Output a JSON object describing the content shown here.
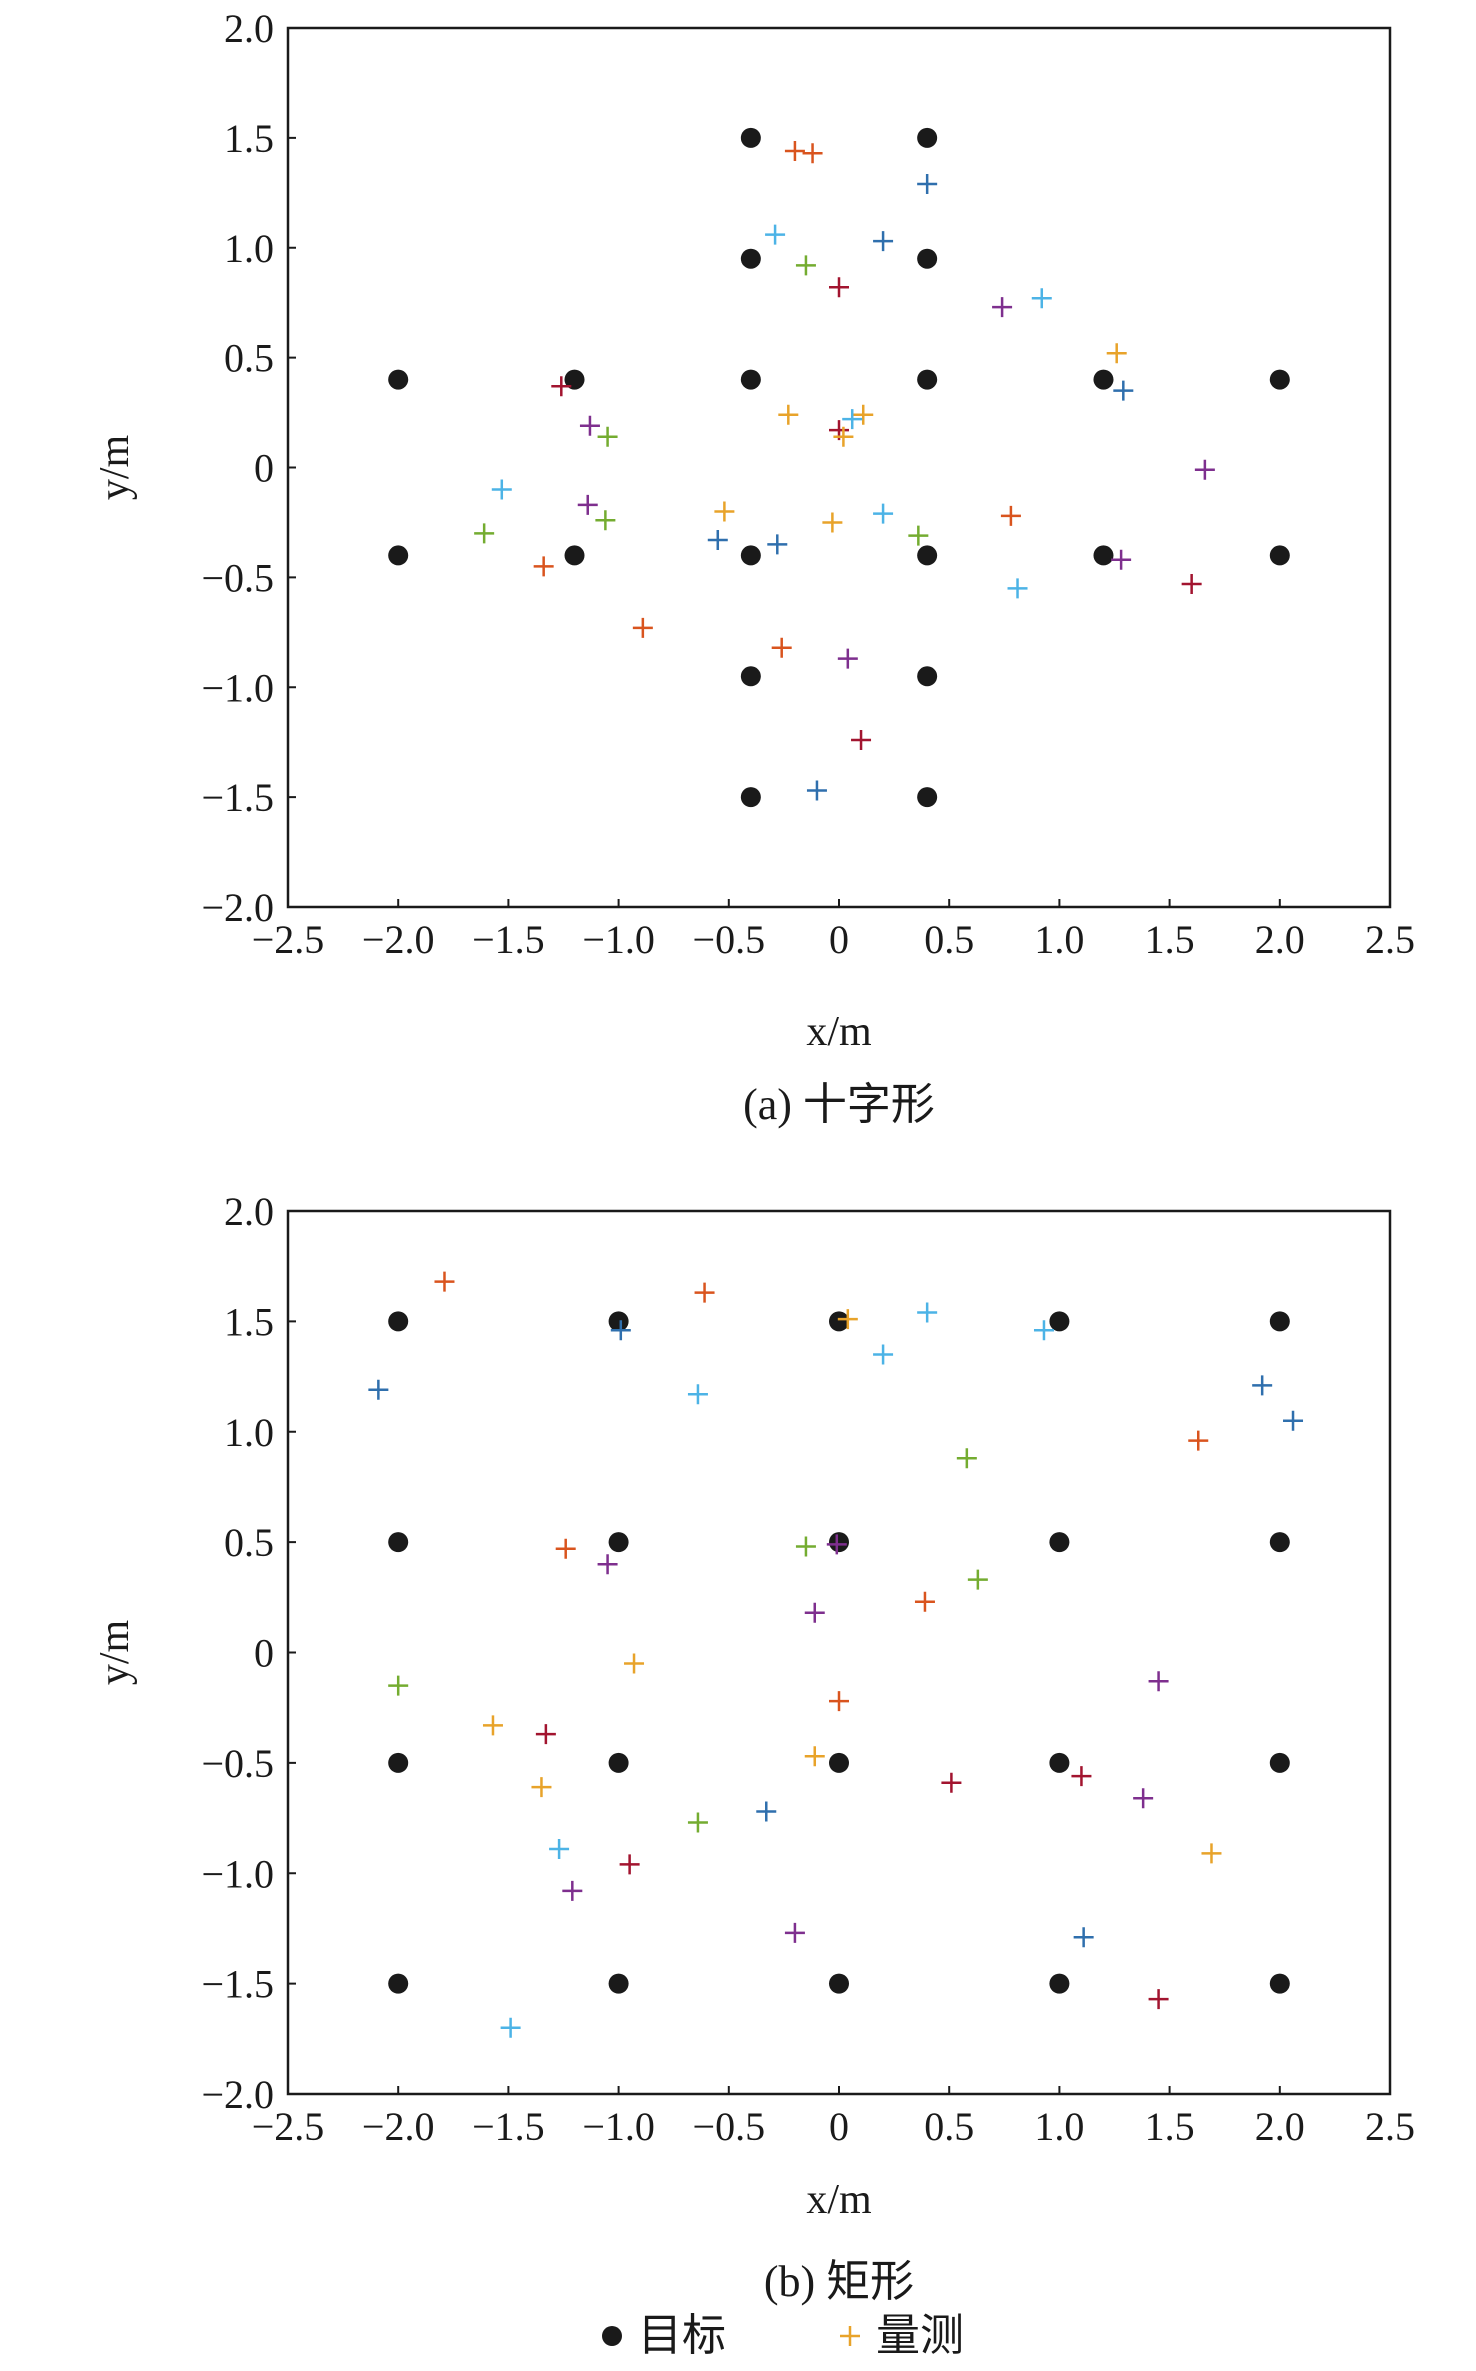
{
  "chart_data": [
    {
      "type": "scatter",
      "caption": "(a) 十字形",
      "x_label": "x/m",
      "y_label": "y/m",
      "xlim": [
        -2.5,
        2.5
      ],
      "ylim": [
        -2,
        2
      ],
      "xticks": [
        {
          "value": -2.5,
          "label": "−2.5"
        },
        {
          "value": -2,
          "label": "−2.0"
        },
        {
          "value": -1.5,
          "label": "−1.5"
        },
        {
          "value": -1,
          "label": "−1.0"
        },
        {
          "value": -0.5,
          "label": "−0.5"
        },
        0,
        0.5,
        {
          "value": 1,
          "label": "1.0"
        },
        1.5,
        {
          "value": 2,
          "label": "2.0"
        },
        2.5
      ],
      "yticks": [
        {
          "value": -2,
          "label": "−2.0"
        },
        {
          "value": -1.5,
          "label": "−1.5"
        },
        {
          "value": -1,
          "label": "−1.0"
        },
        {
          "value": -0.5,
          "label": "−0.5"
        },
        0,
        0.5,
        {
          "value": 1,
          "label": "1.0"
        },
        1.5,
        {
          "value": 2,
          "label": "2.0"
        }
      ],
      "series": [
        {
          "color": "#1a1a1a",
          "marker": "dot",
          "x": [
            -2,
            -2,
            -1.2,
            -1.2,
            -0.4,
            0.4,
            -0.4,
            0.4,
            -0.4,
            0.4,
            -0.4,
            0.4,
            -0.4,
            0.4,
            -0.4,
            0.4,
            1.2,
            1.2,
            2,
            2
          ],
          "values": [
            0.4,
            -0.4,
            0.4,
            -0.4,
            1.5,
            1.5,
            0.95,
            0.95,
            0.4,
            0.4,
            -0.4,
            -0.4,
            -0.95,
            -0.95,
            -1.5,
            -1.5,
            0.4,
            -0.4,
            0.4,
            -0.4
          ]
        },
        {
          "color": "#e8a32a",
          "marker": "plus",
          "x": [
            -0.2,
            -0.12,
            0.4,
            -0.29,
            0.2,
            -0.15,
            0,
            0.74,
            0.92,
            1.26,
            -1.26,
            1.29,
            -0.23,
            0.11,
            0.06,
            0,
            0.02,
            -1.13,
            -1.05,
            1.66,
            -1.53,
            -1.14,
            -0.52,
            0.78,
            0.2,
            -1.06,
            -0.03,
            -0.55,
            -0.28,
            -1.61,
            0.36,
            -1.34,
            1.28,
            0.81,
            1.6,
            -0.89,
            -0.26,
            0.04,
            0.1,
            -0.1
          ],
          "values": [
            1.44,
            1.43,
            1.29,
            1.06,
            1.03,
            0.92,
            0.82,
            0.73,
            0.77,
            0.52,
            0.37,
            0.35,
            0.24,
            0.24,
            0.22,
            0.17,
            0.14,
            0.19,
            0.14,
            -0.01,
            -0.1,
            -0.17,
            -0.2,
            -0.22,
            -0.21,
            -0.24,
            -0.25,
            -0.33,
            -0.35,
            -0.3,
            -0.31,
            -0.45,
            -0.42,
            -0.55,
            -0.53,
            -0.73,
            -0.82,
            -0.87,
            -1.24,
            -1.47
          ],
          "colors": [
            "#d9541e",
            "#d9541e",
            "#2f6fad",
            "#4cb3e6",
            "#2f6fad",
            "#74ac30",
            "#a2142f",
            "#7e2f8e",
            "#4cb3e6",
            "#e8a32a",
            "#a2142f",
            "#2f6fad",
            "#e8a32a",
            "#e8a32a",
            "#4cb3e6",
            "#a2142f",
            "#e8a32a",
            "#7e2f8e",
            "#74ac30",
            "#7e2f8e",
            "#4cb3e6",
            "#7e2f8e",
            "#e8a32a",
            "#d9541e",
            "#4cb3e6",
            "#74ac30",
            "#e8a32a",
            "#2f6fad",
            "#2f6fad",
            "#74ac30",
            "#74ac30",
            "#d9541e",
            "#7e2f8e",
            "#4cb3e6",
            "#a2142f",
            "#d9541e",
            "#d9541e",
            "#7e2f8e",
            "#a2142f",
            "#2f6fad"
          ]
        }
      ]
    },
    {
      "type": "scatter",
      "caption": "(b) 矩形",
      "x_label": "x/m",
      "y_label": "y/m",
      "xlim": [
        -2.5,
        2.5
      ],
      "ylim": [
        -2,
        2
      ],
      "xticks": [
        {
          "value": -2.5,
          "label": "−2.5"
        },
        {
          "value": -2,
          "label": "−2.0"
        },
        {
          "value": -1.5,
          "label": "−1.5"
        },
        {
          "value": -1,
          "label": "−1.0"
        },
        {
          "value": -0.5,
          "label": "−0.5"
        },
        0,
        0.5,
        {
          "value": 1,
          "label": "1.0"
        },
        1.5,
        {
          "value": 2,
          "label": "2.0"
        },
        2.5
      ],
      "yticks": [
        {
          "value": -2,
          "label": "−2.0"
        },
        {
          "value": -1.5,
          "label": "−1.5"
        },
        {
          "value": -1,
          "label": "−1.0"
        },
        {
          "value": -0.5,
          "label": "−0.5"
        },
        0,
        0.5,
        {
          "value": 1,
          "label": "1.0"
        },
        1.5,
        {
          "value": 2,
          "label": "2.0"
        }
      ],
      "series": [
        {
          "name": "目标",
          "color": "#1a1a1a",
          "marker": "dot",
          "x": [
            -2,
            -1,
            0,
            1,
            2,
            -2,
            -1,
            0,
            1,
            2,
            -2,
            -1,
            0,
            1,
            2,
            -2,
            -1,
            0,
            1,
            2
          ],
          "values": [
            1.5,
            1.5,
            1.5,
            1.5,
            1.5,
            0.5,
            0.5,
            0.5,
            0.5,
            0.5,
            -0.5,
            -0.5,
            -0.5,
            -0.5,
            -0.5,
            -1.5,
            -1.5,
            -1.5,
            -1.5,
            -1.5
          ]
        },
        {
          "name": "量测",
          "color": "#e8a32a",
          "marker": "plus",
          "x": [
            -1.79,
            -2.09,
            -0.99,
            -0.61,
            0.04,
            0.4,
            0.2,
            -0.64,
            0.93,
            0.58,
            1.63,
            1.92,
            2.06,
            -1.24,
            -1.05,
            -0.15,
            -0.01,
            0.63,
            0.39,
            -0.11,
            -0.93,
            -2,
            1.45,
            0,
            -1.57,
            -1.33,
            -0.11,
            -1.35,
            0.51,
            1.1,
            1.38,
            -0.33,
            -0.64,
            -1.27,
            -0.95,
            1.69,
            -1.21,
            -0.2,
            1.11,
            1.45,
            -1.49
          ],
          "values": [
            1.68,
            1.19,
            1.46,
            1.63,
            1.51,
            1.54,
            1.35,
            1.17,
            1.46,
            0.88,
            0.96,
            1.21,
            1.05,
            0.47,
            0.4,
            0.48,
            0.49,
            0.33,
            0.23,
            0.18,
            -0.05,
            -0.15,
            -0.13,
            -0.22,
            -0.33,
            -0.37,
            -0.47,
            -0.61,
            -0.59,
            -0.56,
            -0.66,
            -0.72,
            -0.77,
            -0.89,
            -0.96,
            -0.91,
            -1.08,
            -1.27,
            -1.29,
            -1.57,
            -1.7
          ],
          "colors": [
            "#d9541e",
            "#2f6fad",
            "#2f6fad",
            "#d9541e",
            "#e8a32a",
            "#4cb3e6",
            "#4cb3e6",
            "#4cb3e6",
            "#4cb3e6",
            "#74ac30",
            "#d9541e",
            "#2f6fad",
            "#2f6fad",
            "#d9541e",
            "#7e2f8e",
            "#74ac30",
            "#7e2f8e",
            "#74ac30",
            "#d9541e",
            "#7e2f8e",
            "#e8a32a",
            "#74ac30",
            "#7e2f8e",
            "#d9541e",
            "#e8a32a",
            "#a2142f",
            "#e8a32a",
            "#e8a32a",
            "#a2142f",
            "#a2142f",
            "#7e2f8e",
            "#2f6fad",
            "#74ac30",
            "#4cb3e6",
            "#a2142f",
            "#e8a32a",
            "#7e2f8e",
            "#7e2f8e",
            "#2f6fad",
            "#a2142f",
            "#4cb3e6"
          ]
        }
      ]
    }
  ]
}
